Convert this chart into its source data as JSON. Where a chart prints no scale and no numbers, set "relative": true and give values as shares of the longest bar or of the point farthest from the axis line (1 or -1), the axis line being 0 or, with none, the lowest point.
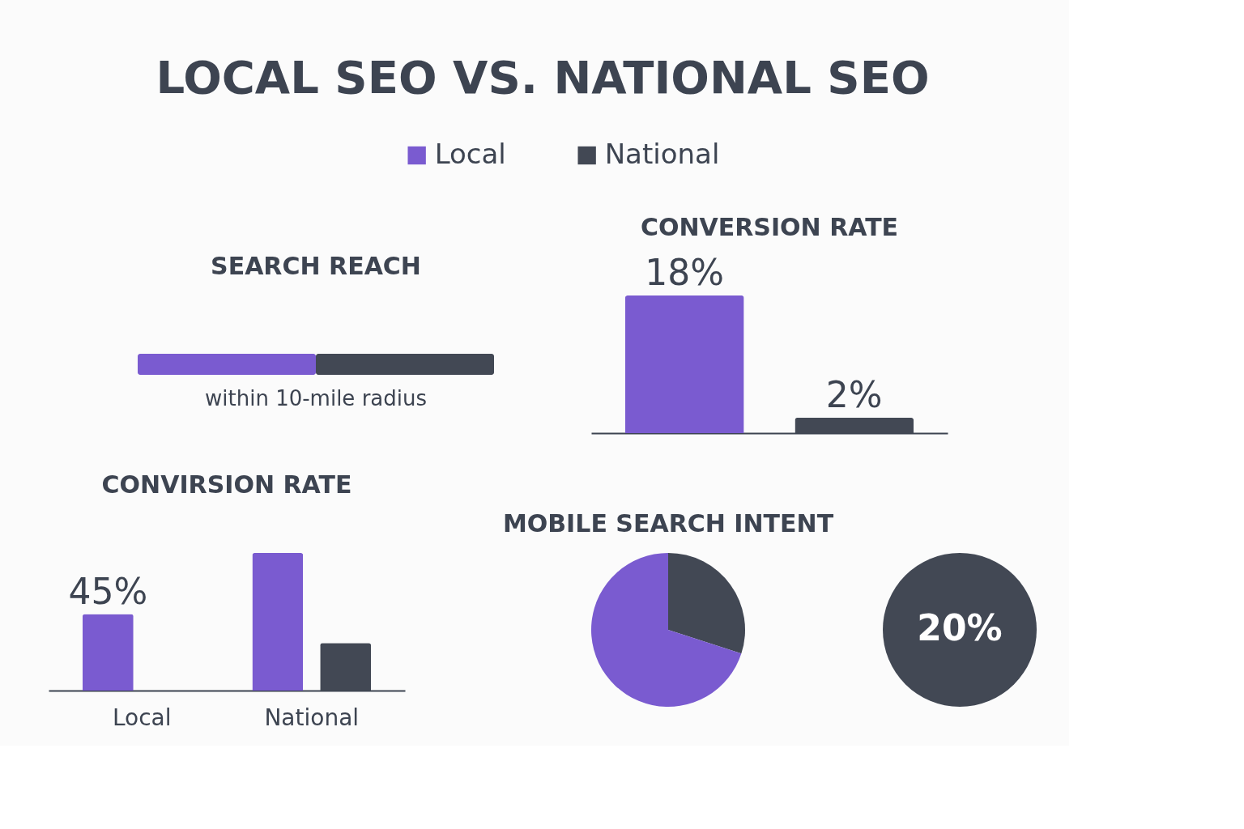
{
  "chart_data": [
    {
      "type": "other",
      "title": "LOCAL SEO VS. NATIONAL SEO",
      "legend": "top",
      "series": [
        {
          "name": "Local",
          "color": "#7a5bd0"
        },
        {
          "name": "National",
          "color": "#424854"
        }
      ]
    },
    {
      "type": "bar",
      "title": "SEARCH REACH",
      "orientation": "horizontal",
      "stacked": true,
      "relative": true,
      "categories": [
        null
      ],
      "annotations": [
        "within 10-mile radius"
      ],
      "series": [
        {
          "color": "#7a5bd0",
          "values": [
            0.5
          ]
        },
        {
          "color": "#424854",
          "values": [
            0.5
          ]
        }
      ]
    },
    {
      "type": "bar",
      "title": "CONVERSION RATE",
      "categories": [
        null,
        null
      ],
      "values": [
        18,
        2
      ],
      "colors": [
        "#7a5bd0",
        "#424854"
      ],
      "value_labels": [
        "18%",
        "2%"
      ],
      "tick_labels": false
    },
    {
      "type": "bar",
      "title": "CONVIRSION RATE",
      "categories": [
        "Local",
        "National"
      ],
      "tick_labels": "x",
      "series": [
        {
          "color": "#7a5bd0",
          "values": [
            45,
            81
          ],
          "value_labels": [
            "45%",
            null
          ]
        },
        {
          "color": "#424854",
          "values": [
            null,
            28
          ]
        }
      ]
    },
    {
      "type": "pie",
      "title": "MOBILE SEARCH INTENT",
      "categories": [
        null,
        null
      ],
      "values": [
        30,
        70
      ],
      "colors": [
        "#424854",
        "#7a5bd0"
      ]
    },
    {
      "type": "pie",
      "categories": [
        null
      ],
      "values": [
        100
      ],
      "colors": [
        "#424854"
      ],
      "annotations": [
        "20%"
      ]
    }
  ]
}
